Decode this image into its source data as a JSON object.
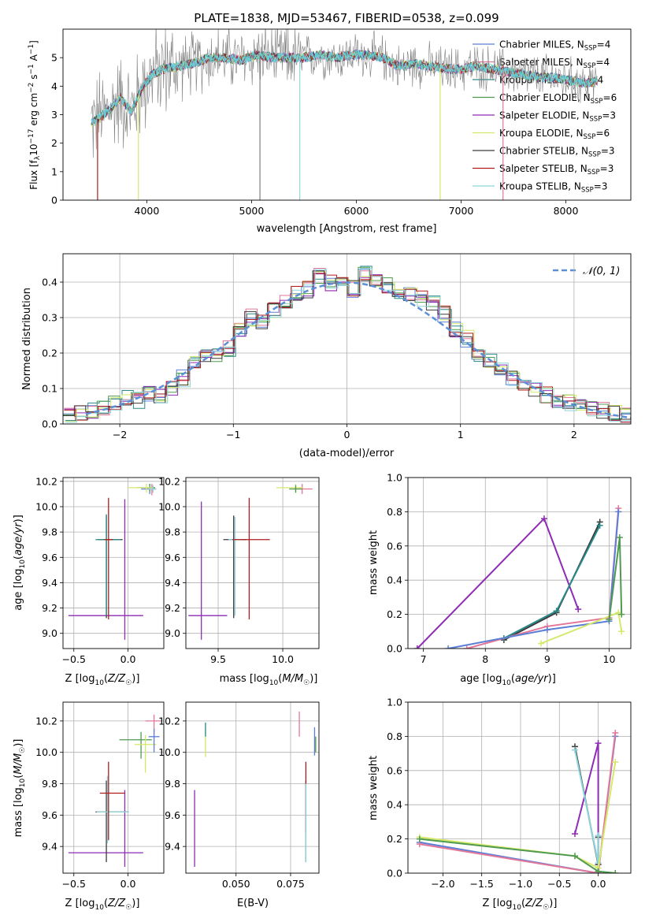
{
  "figure": {
    "background": "#ffffff"
  },
  "sup": {
    "fluxTitle": "PLATE=1838, MJD=53467, FIBERID=0538, z=0.099",
    "fluxXlabel": "wavelength [Angstrom, rest frame]",
    "fluxYlabel": "Flux [f_λ 10^-17 erg cm^-2 s^-1 A^-1]"
  },
  "legends": {
    "flux": [
      "Chabrier MILES, N_SSP=4",
      "Salpeter MILES, N_SSP=4",
      "Kroupa MILES, N_SSP=4",
      "Chabrier ELODIE, N_SSP=6",
      "Salpeter ELODIE, N_SSP=3",
      "Kroupa ELODIE, N_SSP=6",
      "Chabrier STELIB, N_SSP=3",
      "Salpeter STELIB, N_SSP=3",
      "Kroupa STELIB, N_SSP=3"
    ],
    "histNormal": "N(0,1)"
  },
  "colors": {
    "series": [
      "#5b7fd6",
      "#e3779a",
      "#2a8a8a",
      "#4f9a4f",
      "#8e2cb5",
      "#d6e86a",
      "#3a3a3a",
      "#b01c1c",
      "#8fd6dc"
    ],
    "spectrumData": "#808080",
    "modelMain": "#62cfd6",
    "normal": "#5b8fd6",
    "grid": "#b0b0b0"
  },
  "chart_data": [
    {
      "id": "flux",
      "type": "line",
      "title": "PLATE=1838, MJD=53467, FIBERID=0538, z=0.099",
      "xlabel": "wavelength [Angstrom, rest frame]",
      "ylabel": "Flux [f_λ 10^-17 erg cm^-2 s^-1 A^-1]",
      "xlim": [
        3200,
        8620
      ],
      "ylim": [
        0,
        6
      ],
      "xticks": [
        4000,
        5000,
        6000,
        7000,
        8000
      ],
      "yticks": [
        0,
        1,
        2,
        3,
        4,
        5
      ],
      "grid": false,
      "legend": "top-right",
      "model_points": {
        "x": [
          3470,
          3550,
          3650,
          3750,
          3850,
          3950,
          4050,
          4150,
          4300,
          4450,
          4600,
          4750,
          4900,
          5050,
          5200,
          5350,
          5500,
          5650,
          5800,
          5950,
          6100,
          6250,
          6400,
          6550,
          6700,
          6850,
          7000,
          7150,
          7300,
          7450,
          7600,
          7750,
          7900,
          8050,
          8200,
          8300
        ],
        "y": [
          2.7,
          2.9,
          3.2,
          3.6,
          3.1,
          3.9,
          4.4,
          4.6,
          4.7,
          4.8,
          5.0,
          5.0,
          4.9,
          5.1,
          5.0,
          5.0,
          5.0,
          5.1,
          5.0,
          5.1,
          5.1,
          5.0,
          4.7,
          4.8,
          4.7,
          4.6,
          4.6,
          4.7,
          4.6,
          4.5,
          4.4,
          4.3,
          4.3,
          4.2,
          4.1,
          4.2
        ]
      }
    },
    {
      "id": "hist",
      "type": "line",
      "xlabel": "(data-model)/error",
      "ylabel": "Normed distribution",
      "xlim": [
        -2.5,
        2.5
      ],
      "ylim": [
        0,
        0.48
      ],
      "xticks": [
        -2,
        -1,
        0,
        1,
        2
      ],
      "yticks": [
        0.0,
        0.1,
        0.2,
        0.3,
        0.4
      ],
      "grid": true,
      "legend": "top-right",
      "bin_centers": [
        -2.45,
        -2.35,
        -2.25,
        -2.15,
        -2.05,
        -1.95,
        -1.85,
        -1.75,
        -1.65,
        -1.55,
        -1.45,
        -1.35,
        -1.25,
        -1.15,
        -1.05,
        -0.95,
        -0.85,
        -0.75,
        -0.65,
        -0.55,
        -0.45,
        -0.35,
        -0.25,
        -0.15,
        -0.05,
        0.05,
        0.15,
        0.25,
        0.35,
        0.45,
        0.55,
        0.65,
        0.75,
        0.85,
        0.95,
        1.05,
        1.15,
        1.25,
        1.35,
        1.45,
        1.55,
        1.65,
        1.75,
        1.85,
        1.95,
        2.05,
        2.15,
        2.25,
        2.35,
        2.45
      ],
      "counts": [
        0.025,
        0.03,
        0.035,
        0.04,
        0.055,
        0.07,
        0.065,
        0.085,
        0.075,
        0.1,
        0.13,
        0.165,
        0.19,
        0.2,
        0.21,
        0.26,
        0.3,
        0.29,
        0.32,
        0.34,
        0.37,
        0.38,
        0.42,
        0.4,
        0.41,
        0.38,
        0.42,
        0.41,
        0.39,
        0.37,
        0.37,
        0.35,
        0.34,
        0.31,
        0.27,
        0.24,
        0.2,
        0.18,
        0.16,
        0.13,
        0.11,
        0.1,
        0.08,
        0.07,
        0.06,
        0.05,
        0.045,
        0.04,
        0.03,
        0.025
      ],
      "normal_curve": "N(0,1)"
    },
    {
      "id": "age_Z",
      "type": "scatter",
      "xlabel": "Z [log10(Z/Z☉)]",
      "ylabel": "age  [log10(age/yr)]",
      "xlim": [
        -0.6,
        0.33
      ],
      "ylim": [
        8.88,
        10.23
      ],
      "xticks": [
        -0.5,
        0.0
      ],
      "yticks": [
        9.0,
        9.2,
        9.4,
        9.6,
        9.8,
        10.0,
        10.2
      ],
      "grid": true,
      "errorbars": [
        {
          "series": 4,
          "x": -0.03,
          "y": 9.14,
          "xerr": [
            0.52,
            0.17
          ],
          "yerr": [
            0.19,
            0.92
          ]
        },
        {
          "series": 6,
          "x": -0.2,
          "y": 9.74,
          "xerr": [
            0.08,
            0.15
          ],
          "yerr": [
            0.62,
            0.19
          ]
        },
        {
          "series": 2,
          "x": -0.2,
          "y": 9.74,
          "xerr": [
            0.1,
            0.13
          ],
          "yerr": [
            0.6,
            0.2
          ]
        },
        {
          "series": 7,
          "x": -0.18,
          "y": 9.74,
          "xerr": [
            0.04,
            0.04
          ],
          "yerr": [
            0.63,
            0.33
          ]
        },
        {
          "series": 0,
          "x": 0.2,
          "y": 10.14,
          "xerr": [
            0.08,
            0.06
          ],
          "yerr": [
            0.04,
            0.04
          ]
        },
        {
          "series": 1,
          "x": 0.22,
          "y": 10.14,
          "xerr": [
            0.03,
            0.04
          ],
          "yerr": [
            0.05,
            0.04
          ]
        },
        {
          "series": 3,
          "x": 0.2,
          "y": 10.15,
          "xerr": [
            0.12,
            0.05
          ],
          "yerr": [
            0.03,
            0.03
          ]
        },
        {
          "series": 5,
          "x": 0.17,
          "y": 10.15,
          "xerr": [
            0.17,
            0.06
          ],
          "yerr": [
            0.04,
            0.03
          ]
        },
        {
          "series": 8,
          "x": 0.23,
          "y": 10.14,
          "xerr": [
            0.04,
            0.03
          ],
          "yerr": [
            0.03,
            0.03
          ]
        }
      ]
    },
    {
      "id": "age_mass",
      "type": "scatter",
      "xlabel": "mass [log10(M/M☉)]",
      "xlim": [
        9.25,
        10.28
      ],
      "ylim": [
        8.88,
        10.23
      ],
      "xticks": [
        9.5,
        10.0
      ],
      "yticks": [
        9.0,
        9.2,
        9.4,
        9.6,
        9.8,
        10.0,
        10.2
      ],
      "grid": true,
      "errorbars": [
        {
          "series": 4,
          "x": 9.37,
          "y": 9.14,
          "xerr": [
            0.1,
            0.2
          ],
          "yerr": [
            0.19,
            0.9
          ]
        },
        {
          "series": 6,
          "x": 9.62,
          "y": 9.74,
          "xerr": [
            0.08,
            0.1
          ],
          "yerr": [
            0.62,
            0.19
          ]
        },
        {
          "series": 8,
          "x": 9.63,
          "y": 9.74,
          "xerr": [
            0.05,
            0.05
          ],
          "yerr": [
            0.6,
            0.18
          ]
        },
        {
          "series": 7,
          "x": 9.74,
          "y": 9.74,
          "xerr": [
            0.13,
            0.16
          ],
          "yerr": [
            0.63,
            0.33
          ]
        },
        {
          "series": 1,
          "x": 10.15,
          "y": 10.14,
          "xerr": [
            0.06,
            0.08
          ],
          "yerr": [
            0.04,
            0.04
          ]
        },
        {
          "series": 5,
          "x": 10.1,
          "y": 10.15,
          "xerr": [
            0.15,
            0.06
          ],
          "yerr": [
            0.04,
            0.03
          ]
        },
        {
          "series": 3,
          "x": 10.1,
          "y": 10.14,
          "xerr": [
            0.05,
            0.05
          ],
          "yerr": [
            0.03,
            0.03
          ]
        }
      ]
    },
    {
      "id": "mw_age",
      "type": "line",
      "xlabel": "age  [log10(age/yr)]",
      "ylabel": "mass weight",
      "xlim": [
        6.75,
        10.35
      ],
      "ylim": [
        0,
        1
      ],
      "xticks": [
        7,
        8,
        9,
        10
      ],
      "yticks": [
        0.0,
        0.2,
        0.4,
        0.6,
        0.8,
        1.0
      ],
      "grid": true,
      "series": [
        {
          "series": 4,
          "x": [
            6.9,
            8.95,
            9.5
          ],
          "y": [
            0.0,
            0.76,
            0.23
          ]
        },
        {
          "series": 6,
          "x": [
            8.3,
            9.15,
            9.85
          ],
          "y": [
            0.05,
            0.21,
            0.74
          ]
        },
        {
          "series": 2,
          "x": [
            8.3,
            9.15,
            9.85
          ],
          "y": [
            0.06,
            0.22,
            0.72
          ]
        },
        {
          "series": 1,
          "x": [
            7.7,
            9.0,
            10.0,
            10.15
          ],
          "y": [
            0.0,
            0.13,
            0.18,
            0.82
          ]
        },
        {
          "series": 0,
          "x": [
            7.4,
            9.0,
            10.0,
            10.15
          ],
          "y": [
            0.0,
            0.11,
            0.16,
            0.8
          ]
        },
        {
          "series": 5,
          "x": [
            8.9,
            10.15,
            10.2
          ],
          "y": [
            0.03,
            0.21,
            0.1
          ]
        },
        {
          "series": 3,
          "x": [
            10.0,
            10.17,
            10.2
          ],
          "y": [
            0.17,
            0.65,
            0.2
          ]
        }
      ]
    },
    {
      "id": "mass_Z",
      "type": "scatter",
      "xlabel": "Z [log10(Z/Z☉)]",
      "ylabel": "mass [log10(M/M☉)]",
      "xlim": [
        -0.6,
        0.33
      ],
      "ylim": [
        9.23,
        10.32
      ],
      "xticks": [
        -0.5,
        0.0
      ],
      "yticks": [
        9.4,
        9.6,
        9.8,
        10.0,
        10.2
      ],
      "grid": true,
      "errorbars": [
        {
          "series": 4,
          "x": -0.03,
          "y": 9.36,
          "xerr": [
            0.52,
            0.17
          ],
          "yerr": [
            0.09,
            0.4
          ]
        },
        {
          "series": 6,
          "x": -0.2,
          "y": 9.62,
          "xerr": [
            0.1,
            0.2
          ],
          "yerr": [
            0.32,
            0.2
          ]
        },
        {
          "series": 8,
          "x": -0.19,
          "y": 9.62,
          "xerr": [
            0.1,
            0.2
          ],
          "yerr": [
            0.2,
            0.23
          ]
        },
        {
          "series": 7,
          "x": -0.18,
          "y": 9.74,
          "xerr": [
            0.08,
            0.15
          ],
          "yerr": [
            0.3,
            0.2
          ]
        },
        {
          "series": 1,
          "x": 0.24,
          "y": 10.2,
          "xerr": [
            0.08,
            0.06
          ],
          "yerr": [
            0.08,
            0.04
          ]
        },
        {
          "series": 3,
          "x": 0.12,
          "y": 10.08,
          "xerr": [
            0.2,
            0.1
          ],
          "yerr": [
            0.12,
            0.05
          ]
        },
        {
          "series": 5,
          "x": 0.16,
          "y": 10.05,
          "xerr": [
            0.1,
            0.1
          ],
          "yerr": [
            0.18,
            0.06
          ]
        },
        {
          "series": 0,
          "x": 0.24,
          "y": 10.1,
          "xerr": [
            0.05,
            0.05
          ],
          "yerr": [
            0.1,
            0.05
          ]
        }
      ]
    },
    {
      "id": "mass_ebv",
      "type": "scatter",
      "xlabel": "E(B-V)",
      "xlim": [
        0.027,
        0.088
      ],
      "ylim": [
        9.23,
        10.32
      ],
      "xticks": [
        0.05,
        0.075
      ],
      "yticks": [
        9.4,
        9.6,
        9.8,
        10.0,
        10.2
      ],
      "grid": true,
      "errorbars": [
        {
          "series": 4,
          "x": 0.031,
          "y": 9.36,
          "xerr": [
            0,
            0
          ],
          "yerr": [
            0.09,
            0.4
          ]
        },
        {
          "series": 5,
          "x": 0.036,
          "y": 10.1,
          "xerr": [
            0,
            0
          ],
          "yerr": [
            0.13,
            0.05
          ]
        },
        {
          "series": 2,
          "x": 0.036,
          "y": 10.15,
          "xerr": [
            0,
            0
          ],
          "yerr": [
            0.05,
            0.04
          ]
        },
        {
          "series": 1,
          "x": 0.079,
          "y": 10.17,
          "xerr": [
            0,
            0
          ],
          "yerr": [
            0.07,
            0.09
          ]
        },
        {
          "series": 6,
          "x": 0.082,
          "y": 9.62,
          "xerr": [
            0,
            0
          ],
          "yerr": [
            0.32,
            0.2
          ]
        },
        {
          "series": 7,
          "x": 0.082,
          "y": 9.74,
          "xerr": [
            0,
            0
          ],
          "yerr": [
            0.25,
            0.2
          ]
        },
        {
          "series": 8,
          "x": 0.082,
          "y": 9.6,
          "xerr": [
            0,
            0
          ],
          "yerr": [
            0.3,
            0.2
          ]
        },
        {
          "series": 0,
          "x": 0.086,
          "y": 10.06,
          "xerr": [
            0,
            0
          ],
          "yerr": [
            0.08,
            0.1
          ]
        },
        {
          "series": 3,
          "x": 0.0865,
          "y": 10.05,
          "xerr": [
            0,
            0
          ],
          "yerr": [
            0.05,
            0.05
          ]
        }
      ]
    },
    {
      "id": "mw_Z",
      "type": "line",
      "xlabel": "Z [log10(Z/Z☉)]",
      "ylabel": "mass weight",
      "xlim": [
        -2.45,
        0.42
      ],
      "ylim": [
        0,
        1
      ],
      "xticks": [
        -2.0,
        -1.5,
        -1.0,
        -0.5,
        0.0
      ],
      "yticks": [
        0.0,
        0.2,
        0.4,
        0.6,
        0.8,
        1.0
      ],
      "grid": true,
      "series": [
        {
          "series": 4,
          "x": [
            -0.3,
            0.0,
            0.0
          ],
          "y": [
            0.23,
            0.76,
            0.0
          ]
        },
        {
          "series": 6,
          "x": [
            -0.3,
            0.0,
            0.0
          ],
          "y": [
            0.74,
            0.05,
            0.21
          ]
        },
        {
          "series": 8,
          "x": [
            -0.3,
            0.0,
            0.0
          ],
          "y": [
            0.72,
            0.06,
            0.22
          ]
        },
        {
          "series": 0,
          "x": [
            -2.3,
            0.0,
            0.22
          ],
          "y": [
            0.18,
            0.0,
            0.8
          ]
        },
        {
          "series": 1,
          "x": [
            -2.3,
            0.0,
            0.22
          ],
          "y": [
            0.17,
            0.0,
            0.82
          ]
        },
        {
          "series": 5,
          "x": [
            -2.3,
            -0.3,
            0.0,
            0.22
          ],
          "y": [
            0.21,
            0.1,
            0.03,
            0.65
          ]
        },
        {
          "series": 3,
          "x": [
            -2.3,
            -0.3,
            0.0,
            0.22
          ],
          "y": [
            0.2,
            0.1,
            0.01,
            0.0
          ]
        }
      ]
    }
  ]
}
